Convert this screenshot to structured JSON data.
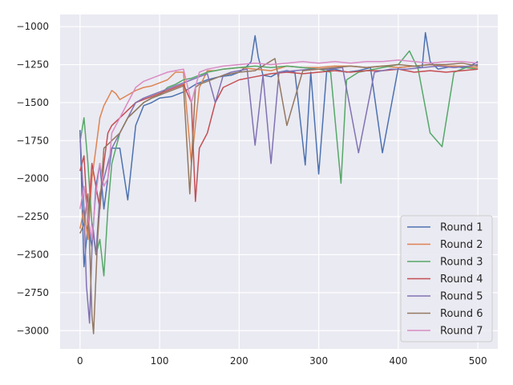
{
  "chart_data": {
    "type": "line",
    "title": "",
    "xlabel": "",
    "ylabel": "",
    "xlim": [
      -25,
      525
    ],
    "ylim": [
      -3120,
      -920
    ],
    "xticks": [
      0,
      100,
      200,
      300,
      400,
      500
    ],
    "xtick_labels": [
      "0",
      "100",
      "200",
      "300",
      "400",
      "500"
    ],
    "yticks": [
      -1000,
      -1250,
      -1500,
      -1750,
      -2000,
      -2250,
      -2500,
      -2750,
      -3000
    ],
    "ytick_labels": [
      "−1000",
      "−1250",
      "−1500",
      "−1750",
      "−2000",
      "−2250",
      "−2500",
      "−2750",
      "−3000"
    ],
    "grid": true,
    "legend_position": "lower-right",
    "series": [
      {
        "name": "Round 1",
        "color": "#4c72b0",
        "x": [
          0,
          5,
          10,
          15,
          20,
          25,
          30,
          40,
          50,
          60,
          70,
          80,
          90,
          100,
          115,
          130,
          145,
          160,
          175,
          190,
          200,
          210,
          215,
          220,
          224,
          230,
          240,
          250,
          260,
          270,
          283,
          290,
          300,
          310,
          320,
          335,
          350,
          365,
          380,
          400,
          420,
          430,
          434,
          440,
          450,
          460,
          470,
          480,
          490,
          500
        ],
        "y": [
          -1680,
          -2580,
          -2300,
          -2450,
          -2050,
          -1900,
          -2200,
          -1800,
          -1800,
          -2140,
          -1650,
          -1520,
          -1500,
          -1470,
          -1460,
          -1430,
          -1380,
          -1350,
          -1330,
          -1320,
          -1300,
          -1260,
          -1230,
          -1060,
          -1200,
          -1320,
          -1330,
          -1300,
          -1290,
          -1300,
          -1910,
          -1300,
          -1970,
          -1290,
          -1280,
          -1300,
          -1290,
          -1270,
          -1830,
          -1270,
          -1260,
          -1270,
          -1040,
          -1230,
          -1280,
          -1270,
          -1260,
          -1270,
          -1260,
          -1230
        ]
      },
      {
        "name": "Round 2",
        "color": "#dd8452",
        "x": [
          0,
          5,
          10,
          15,
          20,
          25,
          30,
          35,
          40,
          45,
          50,
          60,
          70,
          80,
          90,
          100,
          110,
          120,
          130,
          140,
          150,
          160,
          170,
          180,
          200,
          220,
          240,
          260,
          280,
          300,
          320,
          340,
          360,
          380,
          400,
          420,
          440,
          460,
          480,
          500
        ],
        "y": [
          -2330,
          -2200,
          -2400,
          -2000,
          -1800,
          -1600,
          -1520,
          -1470,
          -1420,
          -1440,
          -1480,
          -1450,
          -1420,
          -1400,
          -1390,
          -1370,
          -1350,
          -1300,
          -1300,
          -1900,
          -1400,
          -1290,
          -1290,
          -1280,
          -1270,
          -1280,
          -1290,
          -1260,
          -1270,
          -1270,
          -1260,
          -1260,
          -1270,
          -1260,
          -1270,
          -1260,
          -1250,
          -1260,
          -1260,
          -1270
        ]
      },
      {
        "name": "Round 3",
        "color": "#55a868",
        "x": [
          0,
          5,
          10,
          15,
          20,
          25,
          30,
          35,
          40,
          50,
          60,
          70,
          80,
          90,
          100,
          110,
          120,
          130,
          140,
          150,
          160,
          170,
          180,
          200,
          220,
          240,
          260,
          280,
          300,
          315,
          328,
          335,
          350,
          370,
          400,
          414,
          425,
          440,
          455,
          470,
          485,
          500
        ],
        "y": [
          -1760,
          -1600,
          -1900,
          -2300,
          -2500,
          -2400,
          -2640,
          -2200,
          -1900,
          -1700,
          -1600,
          -1550,
          -1500,
          -1470,
          -1450,
          -1400,
          -1380,
          -1350,
          -1340,
          -1320,
          -1300,
          -1290,
          -1280,
          -1270,
          -1260,
          -1270,
          -1260,
          -1270,
          -1280,
          -1300,
          -2030,
          -1350,
          -1300,
          -1280,
          -1250,
          -1160,
          -1280,
          -1700,
          -1790,
          -1300,
          -1270,
          -1280
        ]
      },
      {
        "name": "Round 4",
        "color": "#c44e52",
        "x": [
          0,
          5,
          10,
          15,
          20,
          25,
          30,
          35,
          40,
          50,
          60,
          70,
          80,
          90,
          100,
          110,
          120,
          130,
          140,
          145,
          150,
          160,
          170,
          180,
          200,
          220,
          240,
          260,
          280,
          300,
          320,
          340,
          360,
          380,
          400,
          420,
          440,
          460,
          480,
          500
        ],
        "y": [
          -1950,
          -1850,
          -2300,
          -1900,
          -2050,
          -2200,
          -1900,
          -1700,
          -1650,
          -1600,
          -1550,
          -1500,
          -1480,
          -1460,
          -1440,
          -1420,
          -1400,
          -1380,
          -1500,
          -2150,
          -1800,
          -1700,
          -1500,
          -1400,
          -1350,
          -1330,
          -1310,
          -1300,
          -1310,
          -1300,
          -1290,
          -1300,
          -1290,
          -1290,
          -1280,
          -1300,
          -1290,
          -1300,
          -1290,
          -1280
        ]
      },
      {
        "name": "Round 5",
        "color": "#8172b3",
        "x": [
          0,
          5,
          8,
          12,
          16,
          20,
          25,
          30,
          40,
          50,
          60,
          70,
          80,
          90,
          100,
          110,
          120,
          130,
          140,
          150,
          160,
          170,
          180,
          190,
          200,
          210,
          220,
          230,
          240,
          250,
          270,
          290,
          310,
          330,
          350,
          370,
          390,
          410,
          430,
          450,
          470,
          490,
          500
        ],
        "y": [
          -1700,
          -2200,
          -2700,
          -2950,
          -2300,
          -2500,
          -2100,
          -2000,
          -1800,
          -1700,
          -1600,
          -1500,
          -1470,
          -1450,
          -1430,
          -1410,
          -1390,
          -1370,
          -1350,
          -1330,
          -1310,
          -1500,
          -1320,
          -1300,
          -1290,
          -1280,
          -1780,
          -1320,
          -1900,
          -1300,
          -1290,
          -1280,
          -1280,
          -1270,
          -1830,
          -1300,
          -1280,
          -1280,
          -1270,
          -1260,
          -1270,
          -1260,
          -1250
        ]
      },
      {
        "name": "Round 6",
        "color": "#937860",
        "x": [
          0,
          5,
          10,
          15,
          17,
          22,
          30,
          40,
          50,
          60,
          70,
          80,
          90,
          100,
          110,
          120,
          130,
          138,
          145,
          150,
          160,
          170,
          180,
          200,
          220,
          245,
          260,
          280,
          300,
          320,
          340,
          360,
          380,
          400,
          420,
          440,
          460,
          480,
          500
        ],
        "y": [
          -2360,
          -2300,
          -2100,
          -2900,
          -3020,
          -2400,
          -1800,
          -1750,
          -1700,
          -1600,
          -1550,
          -1500,
          -1470,
          -1450,
          -1430,
          -1410,
          -1390,
          -2100,
          -1400,
          -1380,
          -1360,
          -1340,
          -1320,
          -1300,
          -1290,
          -1210,
          -1650,
          -1290,
          -1280,
          -1270,
          -1260,
          -1270,
          -1260,
          -1250,
          -1260,
          -1250,
          -1250,
          -1240,
          -1260
        ]
      },
      {
        "name": "Round 7",
        "color": "#da8bc3",
        "x": [
          0,
          5,
          10,
          15,
          20,
          25,
          30,
          35,
          40,
          50,
          60,
          70,
          80,
          90,
          100,
          110,
          120,
          130,
          140,
          150,
          160,
          170,
          180,
          200,
          220,
          240,
          260,
          280,
          300,
          320,
          340,
          360,
          380,
          400,
          420,
          440,
          460,
          480,
          500
        ],
        "y": [
          -2200,
          -2050,
          -2250,
          -2400,
          -2100,
          -1900,
          -2050,
          -2000,
          -1700,
          -1600,
          -1500,
          -1400,
          -1360,
          -1340,
          -1320,
          -1300,
          -1290,
          -1280,
          -1500,
          -1300,
          -1280,
          -1270,
          -1260,
          -1250,
          -1240,
          -1250,
          -1240,
          -1230,
          -1240,
          -1230,
          -1240,
          -1230,
          -1230,
          -1220,
          -1230,
          -1240,
          -1230,
          -1230,
          -1240
        ]
      }
    ]
  }
}
